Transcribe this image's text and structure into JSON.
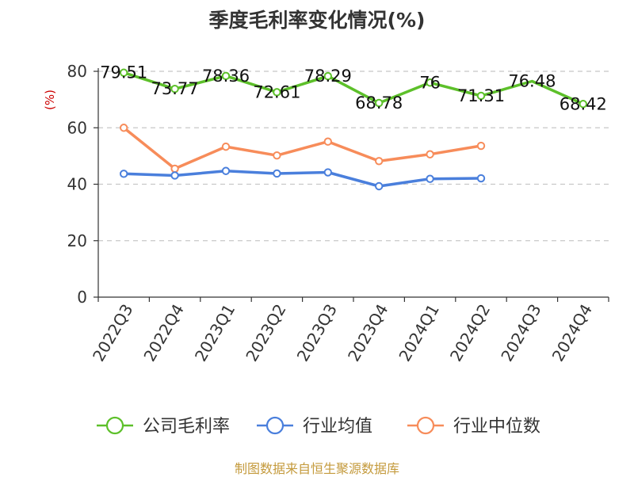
{
  "page": {
    "title": "季度毛利率变化情况(%)",
    "source": "制图数据来自恒生聚源数据库"
  },
  "colors": {
    "company": "#5dc02a",
    "industry_avg": "#4a7fdc",
    "industry_median": "#f78c5a",
    "unit": "#cc0000",
    "grid": "#c8c8c8",
    "axis": "#333333"
  },
  "chart_data": {
    "type": "line",
    "title": "季度毛利率变化情况(%)",
    "xlabel": "",
    "ylabel": "(%)",
    "ylim": [
      0,
      80
    ],
    "yticks": [
      0,
      20,
      40,
      60,
      80
    ],
    "grid": true,
    "legend_position": "bottom",
    "categories": [
      "2022Q3",
      "2022Q4",
      "2023Q1",
      "2023Q2",
      "2023Q3",
      "2023Q4",
      "2024Q1",
      "2024Q2",
      "2024Q3",
      "2024Q4"
    ],
    "series": [
      {
        "name": "公司毛利率",
        "color": "#5dc02a",
        "values": [
          79.51,
          73.77,
          78.36,
          72.61,
          78.29,
          68.78,
          76,
          71.31,
          76.48,
          68.42
        ],
        "labels": [
          "79.51",
          "73.77",
          "78.36",
          "72.61",
          "78.29",
          "68.78",
          "76",
          "71.31",
          "76.48",
          "68.42"
        ],
        "point_markers": [
          true,
          true,
          true,
          true,
          true,
          true,
          true,
          true,
          false,
          true
        ]
      },
      {
        "name": "行业均值",
        "color": "#4a7fdc",
        "values": [
          43.7,
          43.1,
          44.7,
          43.8,
          44.2,
          39.3,
          41.9,
          42.1,
          null,
          null
        ]
      },
      {
        "name": "行业中位数",
        "color": "#f78c5a",
        "values": [
          60,
          45.5,
          53.3,
          50.2,
          55.1,
          48.2,
          50.6,
          53.6,
          null,
          null
        ]
      }
    ]
  }
}
